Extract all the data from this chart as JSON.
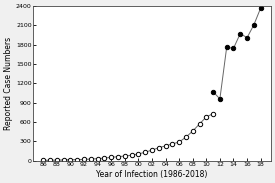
{
  "title": "",
  "xlabel": "Year of Infection (1986-2018)",
  "ylabel": "Reported Case Numbers",
  "ylim": [
    0,
    2400
  ],
  "yticks": [
    0,
    300,
    600,
    900,
    1200,
    1500,
    1800,
    2100,
    2400
  ],
  "xtick_labels": [
    "86",
    "88",
    "90",
    "92",
    "94",
    "96",
    "98",
    "00",
    "02",
    "04",
    "06",
    "08",
    "10",
    "12",
    "14",
    "16",
    "18"
  ],
  "open_years": [
    1986,
    1987,
    1988,
    1989,
    1990,
    1991,
    1992,
    1993,
    1994,
    1995,
    1996,
    1997,
    1998,
    1999,
    2000,
    2001,
    2002,
    2003,
    2004,
    2005,
    2006,
    2007,
    2008,
    2009,
    2010,
    2011
  ],
  "open_values": [
    5,
    7,
    9,
    11,
    14,
    17,
    20,
    25,
    32,
    40,
    52,
    62,
    72,
    85,
    105,
    130,
    165,
    200,
    230,
    260,
    290,
    365,
    460,
    570,
    680,
    730
  ],
  "filled_years": [
    2011,
    2012,
    2013,
    2014,
    2015,
    2016,
    2017,
    2018
  ],
  "filled_values": [
    1070,
    960,
    1762,
    1744,
    1975,
    1910,
    2110,
    2370
  ],
  "open_color": "#000000",
  "filled_color": "#000000",
  "line_color": "#666666",
  "background_color": "#f0f0f0"
}
